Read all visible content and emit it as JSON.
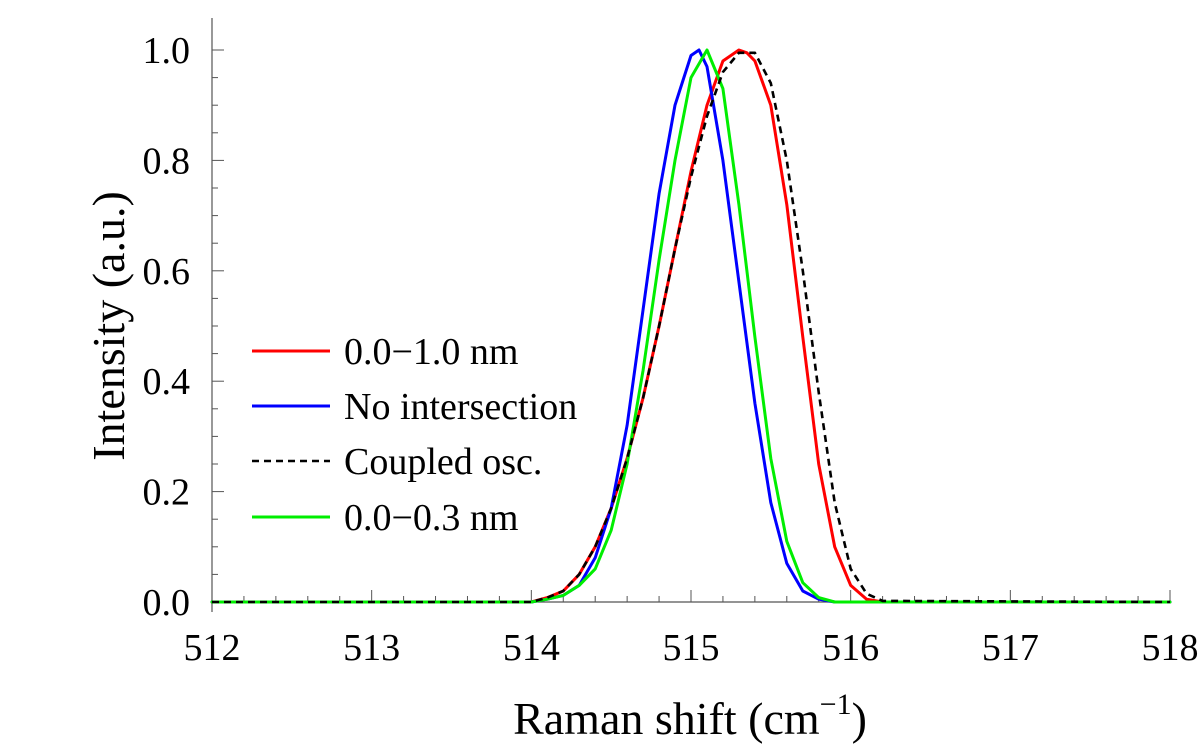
{
  "chart_data": {
    "type": "line",
    "title": "",
    "xlabel": "Raman shift (cm",
    "xlabel_sup": "−1",
    "xlabel_end": ")",
    "ylabel": "Intensity (a.u.)",
    "xlim": [
      512,
      518
    ],
    "ylim": [
      0,
      1
    ],
    "xticks": [
      512,
      513,
      514,
      515,
      516,
      517,
      518
    ],
    "xtick_labels": [
      "512",
      "513",
      "514",
      "515",
      "516",
      "517",
      "518"
    ],
    "yticks": [
      0,
      0.2,
      0.4,
      0.6,
      0.8,
      1.0
    ],
    "ytick_labels": [
      "0.0",
      "0.2",
      "0.4",
      "0.6",
      "0.8",
      "1.0"
    ],
    "grid": false,
    "legend_position": "center-left",
    "series": [
      {
        "name": "0.0−1.0 nm",
        "color": "#ff0000",
        "dash": "solid",
        "x": [
          512.0,
          513.9,
          514.0,
          514.1,
          514.2,
          514.3,
          514.4,
          514.5,
          514.6,
          514.7,
          514.8,
          514.9,
          515.0,
          515.1,
          515.2,
          515.3,
          515.35,
          515.4,
          515.5,
          515.6,
          515.7,
          515.8,
          515.9,
          516.0,
          516.1,
          516.2,
          518.0
        ],
        "y": [
          0.0,
          0.0,
          0.0,
          0.008,
          0.02,
          0.05,
          0.1,
          0.17,
          0.26,
          0.37,
          0.5,
          0.64,
          0.78,
          0.9,
          0.98,
          1.0,
          0.995,
          0.98,
          0.9,
          0.72,
          0.48,
          0.25,
          0.1,
          0.03,
          0.005,
          0.0,
          0.0
        ]
      },
      {
        "name": "No intersection",
        "color": "#0000ff",
        "dash": "solid",
        "x": [
          512.0,
          513.9,
          514.0,
          514.1,
          514.2,
          514.3,
          514.4,
          514.5,
          514.6,
          514.7,
          514.8,
          514.9,
          515.0,
          515.05,
          515.1,
          515.2,
          515.3,
          515.4,
          515.5,
          515.6,
          515.7,
          515.8,
          515.9,
          516.0,
          518.0
        ],
        "y": [
          0.0,
          0.0,
          0.0,
          0.005,
          0.012,
          0.03,
          0.08,
          0.17,
          0.32,
          0.53,
          0.74,
          0.9,
          0.99,
          1.0,
          0.97,
          0.8,
          0.58,
          0.36,
          0.18,
          0.07,
          0.02,
          0.005,
          0.0,
          0.0,
          0.0
        ]
      },
      {
        "name": "Coupled osc.",
        "color": "#000000",
        "dash": "dashed",
        "x": [
          512.0,
          513.9,
          514.0,
          514.1,
          514.2,
          514.3,
          514.4,
          514.5,
          514.6,
          514.7,
          514.8,
          514.9,
          515.0,
          515.1,
          515.2,
          515.3,
          515.4,
          515.5,
          515.6,
          515.7,
          515.8,
          515.9,
          516.0,
          516.1,
          516.2,
          518.0
        ],
        "y": [
          0.0,
          0.0,
          0.0,
          0.008,
          0.02,
          0.05,
          0.1,
          0.17,
          0.26,
          0.37,
          0.5,
          0.64,
          0.77,
          0.88,
          0.96,
          0.995,
          0.995,
          0.94,
          0.8,
          0.6,
          0.38,
          0.18,
          0.06,
          0.015,
          0.002,
          0.0
        ]
      },
      {
        "name": "0.0−0.3 nm",
        "color": "#00ee00",
        "dash": "solid",
        "x": [
          512.0,
          513.9,
          514.0,
          514.1,
          514.2,
          514.3,
          514.4,
          514.5,
          514.6,
          514.7,
          514.8,
          514.9,
          515.0,
          515.1,
          515.2,
          515.3,
          515.4,
          515.5,
          515.6,
          515.7,
          515.8,
          515.9,
          516.0,
          518.0
        ],
        "y": [
          0.0,
          0.0,
          0.0,
          0.005,
          0.012,
          0.03,
          0.06,
          0.13,
          0.25,
          0.42,
          0.62,
          0.8,
          0.95,
          1.0,
          0.93,
          0.72,
          0.48,
          0.26,
          0.11,
          0.035,
          0.008,
          0.0,
          0.0,
          0.0
        ]
      }
    ]
  }
}
